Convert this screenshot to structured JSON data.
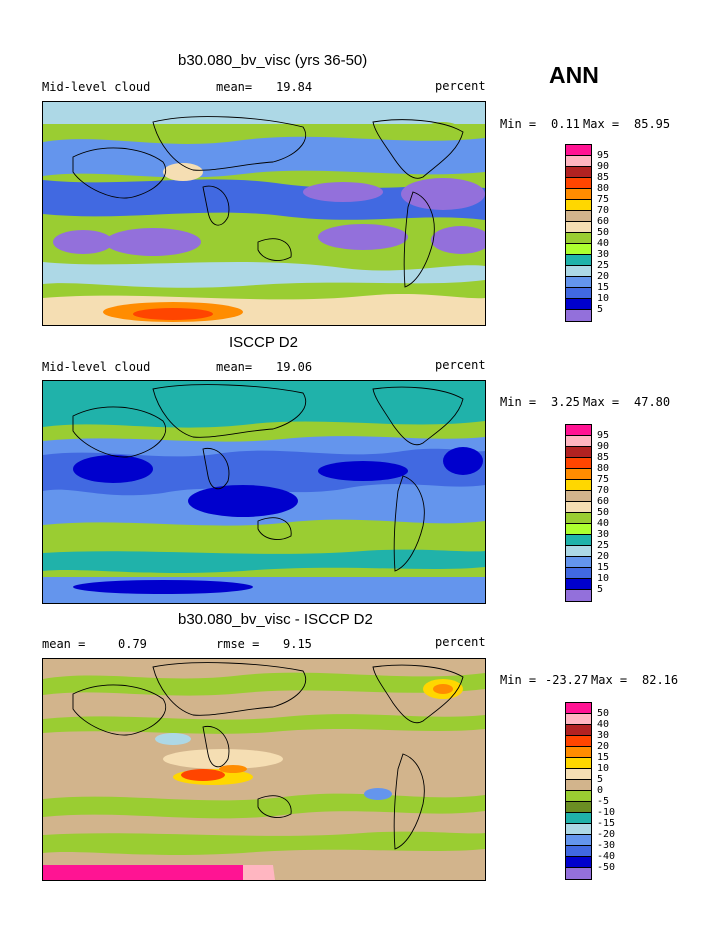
{
  "season": "ANN",
  "panels": [
    {
      "title": "b30.080_bv_visc (yrs 36-50)",
      "left_label": "Mid-level cloud",
      "center_label": "mean=",
      "center_value": "19.84",
      "units": "percent",
      "range": {
        "min_label": "Min =",
        "min": "0.11",
        "max_label": "Max =",
        "max": "85.95"
      },
      "colorbar_labels": [
        "95",
        "90",
        "85",
        "80",
        "75",
        "70",
        "60",
        "50",
        "40",
        "30",
        "25",
        "20",
        "15",
        "10",
        "5"
      ],
      "colorbar_colors": [
        "#ff1493",
        "#ffb6c1",
        "#b22222",
        "#ff4500",
        "#ff8c00",
        "#ffd700",
        "#d2b48c",
        "#f5deb3",
        "#9acd32",
        "#adff2f",
        "#20b2aa",
        "#add8e6",
        "#6495ed",
        "#4169e1",
        "#0000cd",
        "#9370db"
      ]
    },
    {
      "title": "ISCCP D2",
      "left_label": "Mid-level cloud",
      "center_label": "mean=",
      "center_value": "19.06",
      "units": "percent",
      "range": {
        "min_label": "Min =",
        "min": "3.25",
        "max_label": "Max =",
        "max": "47.80"
      },
      "colorbar_labels": [
        "95",
        "90",
        "85",
        "80",
        "75",
        "70",
        "60",
        "50",
        "40",
        "30",
        "25",
        "20",
        "15",
        "10",
        "5"
      ],
      "colorbar_colors": [
        "#ff1493",
        "#ffb6c1",
        "#b22222",
        "#ff4500",
        "#ff8c00",
        "#ffd700",
        "#d2b48c",
        "#f5deb3",
        "#9acd32",
        "#adff2f",
        "#20b2aa",
        "#add8e6",
        "#6495ed",
        "#4169e1",
        "#0000cd",
        "#9370db"
      ]
    },
    {
      "title": "b30.080_bv_visc - ISCCP D2",
      "left_label": "mean =",
      "left_value": "0.79",
      "center_label": "rmse =",
      "center_value": "9.15",
      "units": "percent",
      "range": {
        "min_label": "Min =",
        "min": "-23.27",
        "max_label": "Max =",
        "max": "82.16"
      },
      "colorbar_labels": [
        "50",
        "40",
        "30",
        "20",
        "15",
        "10",
        "5",
        "0",
        "-5",
        "-10",
        "-15",
        "-20",
        "-30",
        "-40",
        "-50"
      ],
      "colorbar_colors": [
        "#ff1493",
        "#ffb6c1",
        "#b22222",
        "#ff4500",
        "#ff8c00",
        "#ffd700",
        "#f5deb3",
        "#d2b48c",
        "#9acd32",
        "#6b8e23",
        "#20b2aa",
        "#add8e6",
        "#6495ed",
        "#4169e1",
        "#0000cd",
        "#9370db"
      ]
    }
  ]
}
